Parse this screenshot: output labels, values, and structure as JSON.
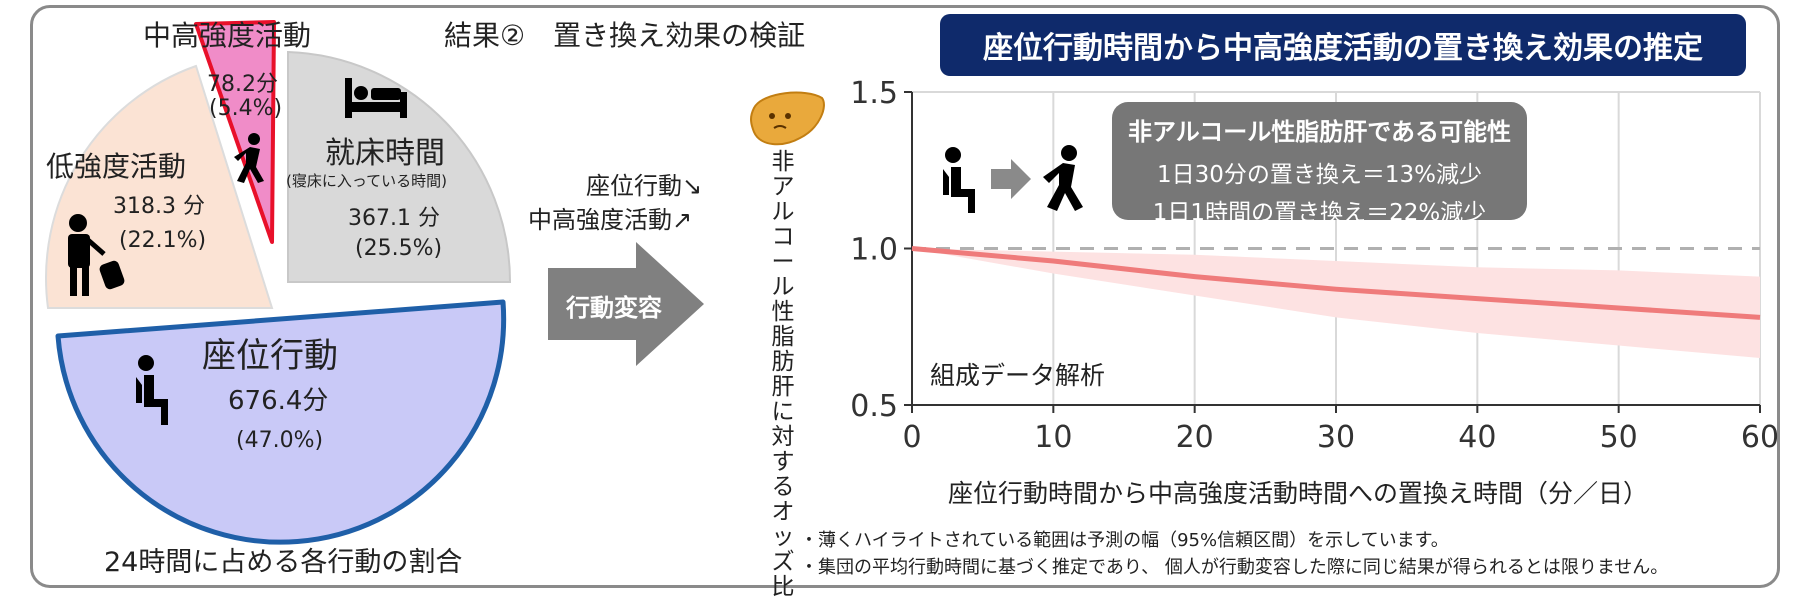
{
  "header": {
    "section_title": "結果②　置き換え効果の検証",
    "banner_title": "座位行動時間から中高強度活動の置き換え効果の推定"
  },
  "pie": {
    "caption": "24時間に占める各行動の割合",
    "segments": [
      {
        "name": "座位行動",
        "minutes": 676.4,
        "minutes_label": "676.4分",
        "percent": 47.0,
        "percent_label": "(47.0%)",
        "fill": "#c9c9f7",
        "stroke": "#1f5fa8",
        "icon": "sitting-person-icon"
      },
      {
        "name": "就床時間",
        "sub": "(寝床に入っている時間)",
        "minutes": 367.1,
        "minutes_label": "367.1 分",
        "percent": 25.5,
        "percent_label": "(25.5%)",
        "fill": "#d9d9d9",
        "stroke": "#c8c8c8",
        "icon": "bed-icon"
      },
      {
        "name": "中高強度活動",
        "minutes": 78.2,
        "minutes_label": "78.2分",
        "percent": 5.4,
        "percent_label": "(5.4%)",
        "fill": "#f08cc8",
        "stroke": "#e8102a",
        "icon": "walking-person-icon"
      },
      {
        "name": "低強度活動",
        "minutes": 318.3,
        "minutes_label": "318.3 分",
        "percent": 22.1,
        "percent_label": "(22.1%)",
        "fill": "#fbe3d4",
        "stroke": "#dcdcdc",
        "icon": "person-with-luggage-icon"
      }
    ]
  },
  "arrow": {
    "label": "行動変容",
    "line1": "座位行動↘",
    "line2": "中高強度活動↗"
  },
  "callout": {
    "title": "非アルコール性脂肪肝である可能性",
    "line1": "1日30分の置き換え＝13%減少",
    "line2": "1日1時間の置き換え＝22%減少"
  },
  "chart_data": {
    "type": "line",
    "xlabel": "座位行動時間から中高強度活動時間への置換え時間（分／日）",
    "ylabel": "非アルコール性脂肪肝に対するオッズ比",
    "xlim": [
      0,
      60
    ],
    "ylim": [
      0.5,
      1.5
    ],
    "xticks": [
      0,
      10,
      20,
      30,
      40,
      50,
      60
    ],
    "yticks": [
      0.5,
      1.0,
      1.5
    ],
    "ytick_labels": [
      "0.5",
      "1.0",
      "1.5"
    ],
    "reference_line": 1.0,
    "annotation": "組成データ解析",
    "series": [
      {
        "x": [
          0,
          10,
          20,
          30,
          40,
          50,
          60
        ],
        "y": [
          1.0,
          0.96,
          0.91,
          0.87,
          0.84,
          0.81,
          0.78
        ],
        "lower": [
          1.0,
          0.92,
          0.85,
          0.78,
          0.73,
          0.69,
          0.65
        ],
        "upper": [
          1.0,
          0.99,
          0.98,
          0.96,
          0.94,
          0.93,
          0.91
        ],
        "color": "#ef7b7b"
      }
    ]
  },
  "notes": [
    "・薄くハイライトされている範囲は予測の幅（95%信頼区間）を示しています。",
    "・集団の平均行動時間に基づく推定であり、 個人が行動変容した際に同じ結果が得られるとは限りません。"
  ]
}
